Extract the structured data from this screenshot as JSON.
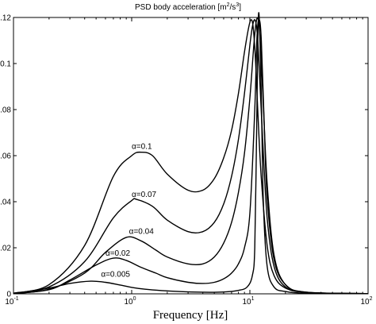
{
  "chart_data": {
    "type": "line",
    "title": "PSD body acceleration [m²/s³]",
    "title_main": "PSD body acceleration [m",
    "title_sup1": "2",
    "title_mid": "/s",
    "title_sup2": "3",
    "title_end": "]",
    "xlabel": "Frequency [Hz]",
    "ylabel": "",
    "xscale": "log",
    "xlim": [
      0.1,
      100
    ],
    "ylim": [
      0,
      0.12
    ],
    "grid": false,
    "x_ticks": [
      {
        "base": "10",
        "exp": "-1",
        "value": 0.1
      },
      {
        "base": "10",
        "exp": "0",
        "value": 1
      },
      {
        "base": "10",
        "exp": "1",
        "value": 10
      },
      {
        "base": "10",
        "exp": "2",
        "value": 100
      }
    ],
    "y_ticks": [
      {
        "label": "0",
        "value": 0
      },
      {
        "label": "0.02",
        "value": 0.02
      },
      {
        "label": "0.04",
        "value": 0.04
      },
      {
        "label": "0.06",
        "value": 0.06
      },
      {
        "label": "0.08",
        "value": 0.08
      },
      {
        "label": "0.1",
        "value": 0.1
      },
      {
        "label": "0.12",
        "value": 0.12
      }
    ],
    "series": [
      {
        "name": "α=0.1",
        "label_at": [
          1.0,
          0.063
        ],
        "x": [
          0.1,
          0.2,
          0.4,
          0.7,
          1.0,
          1.2,
          1.5,
          2.0,
          3.0,
          4.0,
          5.0,
          6.0,
          7.0,
          8.0,
          9.0,
          9.8,
          10.3,
          10.7,
          11.2,
          11.7,
          12.5,
          14.0,
          16.0,
          20.0,
          30.0,
          50.0,
          100.0
        ],
        "y": [
          0.0003,
          0.004,
          0.021,
          0.051,
          0.06,
          0.0615,
          0.06,
          0.052,
          0.045,
          0.045,
          0.05,
          0.059,
          0.071,
          0.087,
          0.105,
          0.116,
          0.119,
          0.115,
          0.1,
          0.078,
          0.05,
          0.021,
          0.008,
          0.0025,
          0.0006,
          0.0002,
          0.0001
        ]
      },
      {
        "name": "α=0.07",
        "label_at": [
          1.0,
          0.042
        ],
        "x": [
          0.1,
          0.2,
          0.4,
          0.7,
          1.0,
          1.1,
          1.5,
          2.0,
          3.0,
          4.0,
          5.0,
          6.0,
          7.0,
          8.0,
          9.0,
          10.0,
          10.5,
          11.0,
          11.5,
          12.0,
          12.8,
          14.0,
          16.0,
          20.0,
          30.0,
          100.0
        ],
        "y": [
          0.0002,
          0.003,
          0.014,
          0.033,
          0.0405,
          0.041,
          0.038,
          0.032,
          0.027,
          0.027,
          0.031,
          0.039,
          0.051,
          0.067,
          0.087,
          0.108,
          0.116,
          0.119,
          0.114,
          0.098,
          0.068,
          0.033,
          0.012,
          0.003,
          0.0006,
          0.0001
        ]
      },
      {
        "name": "α=0.04",
        "label_at": [
          0.95,
          0.026
        ],
        "x": [
          0.1,
          0.2,
          0.4,
          0.6,
          0.9,
          1.2,
          1.6,
          2.0,
          3.0,
          4.0,
          5.0,
          6.0,
          7.0,
          8.0,
          9.0,
          10.0,
          10.8,
          11.3,
          11.8,
          12.3,
          13.0,
          14.0,
          16.0,
          20.0,
          30.0,
          100.0
        ],
        "y": [
          0.0001,
          0.002,
          0.009,
          0.018,
          0.0245,
          0.023,
          0.019,
          0.016,
          0.013,
          0.013,
          0.016,
          0.022,
          0.031,
          0.044,
          0.061,
          0.085,
          0.108,
          0.118,
          0.119,
          0.108,
          0.082,
          0.048,
          0.017,
          0.004,
          0.0007,
          0.0001
        ]
      },
      {
        "name": "α=0.02",
        "label_at": [
          0.6,
          0.0165
        ],
        "x": [
          0.1,
          0.2,
          0.3,
          0.5,
          0.7,
          0.9,
          1.2,
          1.6,
          2.0,
          3.0,
          4.0,
          5.0,
          6.0,
          7.0,
          8.0,
          9.0,
          10.0,
          11.0,
          11.5,
          12.0,
          12.5,
          13.2,
          14.0,
          16.0,
          20.0,
          30.0,
          100.0
        ],
        "y": [
          0.0001,
          0.0018,
          0.006,
          0.0125,
          0.0155,
          0.0145,
          0.0115,
          0.009,
          0.007,
          0.005,
          0.0045,
          0.005,
          0.0065,
          0.009,
          0.013,
          0.02,
          0.035,
          0.08,
          0.112,
          0.119,
          0.11,
          0.075,
          0.042,
          0.015,
          0.004,
          0.0007,
          0.0001
        ]
      },
      {
        "name": "α=0.005",
        "label_at": [
          0.55,
          0.0075
        ],
        "x": [
          0.1,
          0.2,
          0.3,
          0.45,
          0.6,
          0.8,
          1.0,
          1.3,
          1.8,
          2.5,
          4.0,
          6.0,
          8.0,
          9.5,
          10.5,
          11.0,
          11.4,
          11.7,
          12.0,
          12.5,
          13.0,
          14.0,
          16.0,
          20.0,
          30.0,
          100.0
        ],
        "y": [
          0.0001,
          0.0025,
          0.0045,
          0.0055,
          0.005,
          0.0038,
          0.0028,
          0.002,
          0.0014,
          0.001,
          0.0007,
          0.0008,
          0.0015,
          0.003,
          0.008,
          0.02,
          0.07,
          0.113,
          0.12,
          0.085,
          0.04,
          0.012,
          0.003,
          0.001,
          0.0003,
          0.0001
        ]
      }
    ]
  }
}
